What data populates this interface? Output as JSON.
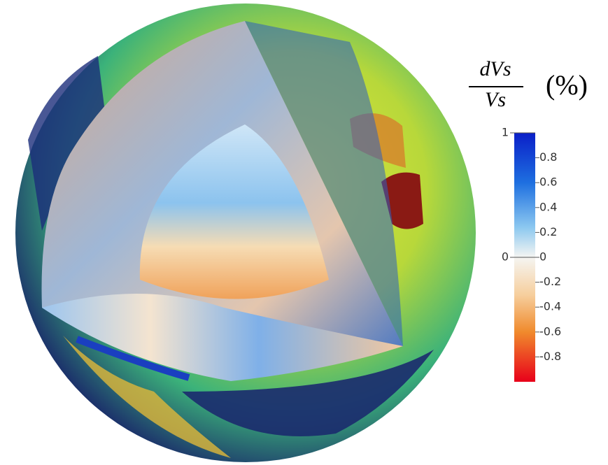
{
  "colorbar": {
    "title": {
      "numerator": "dVs",
      "denominator": "Vs",
      "unit": "(%)"
    },
    "limits": [
      -1,
      1
    ],
    "left_ticks": [
      1,
      0
    ],
    "right_ticks": [
      0.8,
      0.6,
      0.4,
      0.2,
      0,
      -0.2,
      -0.4,
      -0.6,
      -0.8
    ]
  }
}
